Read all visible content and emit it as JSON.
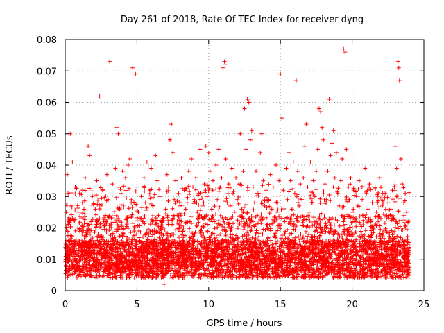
{
  "chart_data": {
    "type": "scatter",
    "title": "Day 261 of 2018, Rate Of TEC Index for receiver dyng",
    "xlabel": "GPS time / hours",
    "ylabel": "ROTI / TECUs",
    "xlim": [
      0,
      25
    ],
    "ylim": [
      0,
      0.08
    ],
    "xticks": [
      0,
      5,
      10,
      15,
      20,
      25
    ],
    "yticks": [
      0,
      0.01,
      0.02,
      0.03,
      0.04,
      0.05,
      0.06,
      0.07,
      0.08
    ],
    "xtick_labels": [
      "0",
      "5",
      "10",
      "15",
      "20",
      "25"
    ],
    "ytick_labels": [
      "0",
      "0.01",
      "0.02",
      "0.03",
      "0.04",
      "0.05",
      "0.06",
      "0.07",
      "0.08"
    ],
    "grid": true,
    "marker": "+",
    "color": "#ff0000",
    "series": [
      {
        "name": "ROTI",
        "points": [
          [
            0.05,
            0.008
          ],
          [
            0.1,
            0.012
          ],
          [
            0.15,
            0.037
          ],
          [
            0.2,
            0.031
          ],
          [
            0.25,
            0.022
          ],
          [
            0.3,
            0.015
          ],
          [
            0.35,
            0.05
          ],
          [
            0.4,
            0.027
          ],
          [
            0.5,
            0.041
          ],
          [
            0.6,
            0.018
          ],
          [
            0.7,
            0.033
          ],
          [
            0.8,
            0.009
          ],
          [
            0.9,
            0.025
          ],
          [
            1.0,
            0.031
          ],
          [
            1.1,
            0.014
          ],
          [
            1.2,
            0.028
          ],
          [
            1.3,
            0.011
          ],
          [
            1.4,
            0.036
          ],
          [
            1.5,
            0.019
          ],
          [
            1.6,
            0.046
          ],
          [
            1.7,
            0.043
          ],
          [
            1.8,
            0.022
          ],
          [
            1.9,
            0.03
          ],
          [
            2.0,
            0.015
          ],
          [
            2.1,
            0.026
          ],
          [
            2.2,
            0.035
          ],
          [
            2.3,
            0.018
          ],
          [
            2.4,
            0.062
          ],
          [
            2.5,
            0.027
          ],
          [
            2.6,
            0.032
          ],
          [
            2.7,
            0.012
          ],
          [
            2.8,
            0.024
          ],
          [
            2.9,
            0.037
          ],
          [
            3.0,
            0.029
          ],
          [
            3.1,
            0.073
          ],
          [
            3.2,
            0.021
          ],
          [
            3.3,
            0.034
          ],
          [
            3.4,
            0.016
          ],
          [
            3.5,
            0.039
          ],
          [
            3.6,
            0.052
          ],
          [
            3.7,
            0.05
          ],
          [
            3.8,
            0.026
          ],
          [
            3.9,
            0.031
          ],
          [
            4.0,
            0.038
          ],
          [
            4.1,
            0.014
          ],
          [
            4.2,
            0.036
          ],
          [
            4.3,
            0.023
          ],
          [
            4.4,
            0.04
          ],
          [
            4.5,
            0.042
          ],
          [
            4.6,
            0.028
          ],
          [
            4.7,
            0.071
          ],
          [
            4.8,
            0.019
          ],
          [
            4.9,
            0.069
          ],
          [
            5.0,
            0.033
          ],
          [
            5.1,
            0.025
          ],
          [
            5.2,
            0.016
          ],
          [
            5.3,
            0.03
          ],
          [
            5.4,
            0.022
          ],
          [
            5.5,
            0.036
          ],
          [
            5.6,
            0.028
          ],
          [
            5.7,
            0.041
          ],
          [
            5.8,
            0.018
          ],
          [
            5.9,
            0.032
          ],
          [
            6.0,
            0.039
          ],
          [
            6.1,
            0.027
          ],
          [
            6.2,
            0.014
          ],
          [
            6.3,
            0.043
          ],
          [
            6.4,
            0.035
          ],
          [
            6.5,
            0.024
          ],
          [
            6.6,
            0.03
          ],
          [
            6.7,
            0.021
          ],
          [
            6.8,
            0.012
          ],
          [
            6.9,
            0.002
          ],
          [
            7.0,
            0.026
          ],
          [
            7.1,
            0.037
          ],
          [
            7.2,
            0.033
          ],
          [
            7.3,
            0.048
          ],
          [
            7.4,
            0.053
          ],
          [
            7.5,
            0.044
          ],
          [
            7.6,
            0.029
          ],
          [
            7.7,
            0.035
          ],
          [
            7.8,
            0.024
          ],
          [
            7.9,
            0.031
          ],
          [
            8.0,
            0.027
          ],
          [
            8.1,
            0.036
          ],
          [
            8.2,
            0.019
          ],
          [
            8.3,
            0.032
          ],
          [
            8.4,
            0.026
          ],
          [
            8.5,
            0.028
          ],
          [
            8.6,
            0.038
          ],
          [
            8.7,
            0.022
          ],
          [
            8.8,
            0.042
          ],
          [
            8.9,
            0.033
          ],
          [
            9.0,
            0.029
          ],
          [
            9.1,
            0.036
          ],
          [
            9.2,
            0.025
          ],
          [
            9.3,
            0.031
          ],
          [
            9.4,
            0.045
          ],
          [
            9.5,
            0.02
          ],
          [
            9.6,
            0.027
          ],
          [
            9.7,
            0.034
          ],
          [
            9.8,
            0.046
          ],
          [
            9.9,
            0.03
          ],
          [
            10.0,
            0.044
          ],
          [
            10.1,
            0.038
          ],
          [
            10.2,
            0.026
          ],
          [
            10.3,
            0.035
          ],
          [
            10.4,
            0.022
          ],
          [
            10.5,
            0.04
          ],
          [
            10.6,
            0.029
          ],
          [
            10.7,
            0.045
          ],
          [
            10.8,
            0.033
          ],
          [
            10.9,
            0.036
          ],
          [
            11.0,
            0.071
          ],
          [
            11.1,
            0.073
          ],
          [
            11.15,
            0.072
          ],
          [
            11.2,
            0.042
          ],
          [
            11.3,
            0.028
          ],
          [
            11.4,
            0.034
          ],
          [
            11.5,
            0.027
          ],
          [
            11.6,
            0.039
          ],
          [
            11.7,
            0.031
          ],
          [
            11.8,
            0.025
          ],
          [
            11.9,
            0.036
          ],
          [
            12.0,
            0.029
          ],
          [
            12.1,
            0.034
          ],
          [
            12.2,
            0.05
          ],
          [
            12.3,
            0.026
          ],
          [
            12.4,
            0.038
          ],
          [
            12.5,
            0.058
          ],
          [
            12.6,
            0.045
          ],
          [
            12.7,
            0.061
          ],
          [
            12.8,
            0.06
          ],
          [
            12.9,
            0.048
          ],
          [
            13.0,
            0.051
          ],
          [
            13.1,
            0.033
          ],
          [
            13.2,
            0.028
          ],
          [
            13.3,
            0.038
          ],
          [
            13.4,
            0.024
          ],
          [
            13.5,
            0.031
          ],
          [
            13.6,
            0.044
          ],
          [
            13.7,
            0.05
          ],
          [
            13.8,
            0.035
          ],
          [
            13.9,
            0.027
          ],
          [
            14.0,
            0.032
          ],
          [
            14.1,
            0.021
          ],
          [
            14.2,
            0.029
          ],
          [
            14.3,
            0.037
          ],
          [
            14.4,
            0.026
          ],
          [
            14.5,
            0.033
          ],
          [
            14.6,
            0.018
          ],
          [
            14.7,
            0.04
          ],
          [
            14.8,
            0.028
          ],
          [
            14.9,
            0.035
          ],
          [
            15.0,
            0.069
          ],
          [
            15.1,
            0.055
          ],
          [
            15.2,
            0.032
          ],
          [
            15.3,
            0.022
          ],
          [
            15.4,
            0.039
          ],
          [
            15.5,
            0.029
          ],
          [
            15.6,
            0.044
          ],
          [
            15.7,
            0.035
          ],
          [
            15.8,
            0.026
          ],
          [
            15.9,
            0.041
          ],
          [
            16.0,
            0.031
          ],
          [
            16.1,
            0.067
          ],
          [
            16.2,
            0.038
          ],
          [
            16.3,
            0.027
          ],
          [
            16.4,
            0.034
          ],
          [
            16.5,
            0.029
          ],
          [
            16.6,
            0.036
          ],
          [
            16.7,
            0.046
          ],
          [
            16.8,
            0.053
          ],
          [
            16.9,
            0.033
          ],
          [
            17.0,
            0.025
          ],
          [
            17.1,
            0.041
          ],
          [
            17.2,
            0.028
          ],
          [
            17.3,
            0.035
          ],
          [
            17.4,
            0.03
          ],
          [
            17.5,
            0.038
          ],
          [
            17.6,
            0.045
          ],
          [
            17.7,
            0.058
          ],
          [
            17.8,
            0.057
          ],
          [
            17.9,
            0.052
          ],
          [
            18.0,
            0.048
          ],
          [
            18.1,
            0.034
          ],
          [
            18.2,
            0.029
          ],
          [
            18.3,
            0.038
          ],
          [
            18.4,
            0.061
          ],
          [
            18.5,
            0.043
          ],
          [
            18.6,
            0.047
          ],
          [
            18.7,
            0.051
          ],
          [
            18.8,
            0.036
          ],
          [
            18.9,
            0.044
          ],
          [
            19.0,
            0.031
          ],
          [
            19.1,
            0.027
          ],
          [
            19.2,
            0.035
          ],
          [
            19.3,
            0.042
          ],
          [
            19.4,
            0.077
          ],
          [
            19.5,
            0.076
          ],
          [
            19.6,
            0.045
          ],
          [
            19.7,
            0.033
          ],
          [
            19.8,
            0.029
          ],
          [
            19.9,
            0.036
          ],
          [
            20.0,
            0.025
          ],
          [
            20.1,
            0.032
          ],
          [
            20.2,
            0.023
          ],
          [
            20.3,
            0.03
          ],
          [
            20.4,
            0.027
          ],
          [
            20.5,
            0.035
          ],
          [
            20.6,
            0.021
          ],
          [
            20.7,
            0.029
          ],
          [
            20.8,
            0.024
          ],
          [
            20.9,
            0.039
          ],
          [
            21.0,
            0.031
          ],
          [
            21.1,
            0.026
          ],
          [
            21.2,
            0.034
          ],
          [
            21.3,
            0.022
          ],
          [
            21.4,
            0.028
          ],
          [
            21.5,
            0.02
          ],
          [
            21.6,
            0.033
          ],
          [
            21.7,
            0.025
          ],
          [
            21.8,
            0.03
          ],
          [
            21.9,
            0.036
          ],
          [
            22.0,
            0.023
          ],
          [
            22.1,
            0.027
          ],
          [
            22.2,
            0.019
          ],
          [
            22.3,
            0.031
          ],
          [
            22.4,
            0.024
          ],
          [
            22.5,
            0.028
          ],
          [
            22.6,
            0.018
          ],
          [
            22.7,
            0.026
          ],
          [
            22.8,
            0.032
          ],
          [
            22.9,
            0.023
          ],
          [
            23.0,
            0.046
          ],
          [
            23.1,
            0.039
          ],
          [
            23.2,
            0.073
          ],
          [
            23.25,
            0.071
          ],
          [
            23.3,
            0.067
          ],
          [
            23.4,
            0.042
          ],
          [
            23.5,
            0.034
          ],
          [
            23.6,
            0.028
          ],
          [
            23.7,
            0.031
          ],
          [
            23.8,
            0.025
          ],
          [
            23.9,
            0.022
          ]
        ]
      }
    ]
  }
}
